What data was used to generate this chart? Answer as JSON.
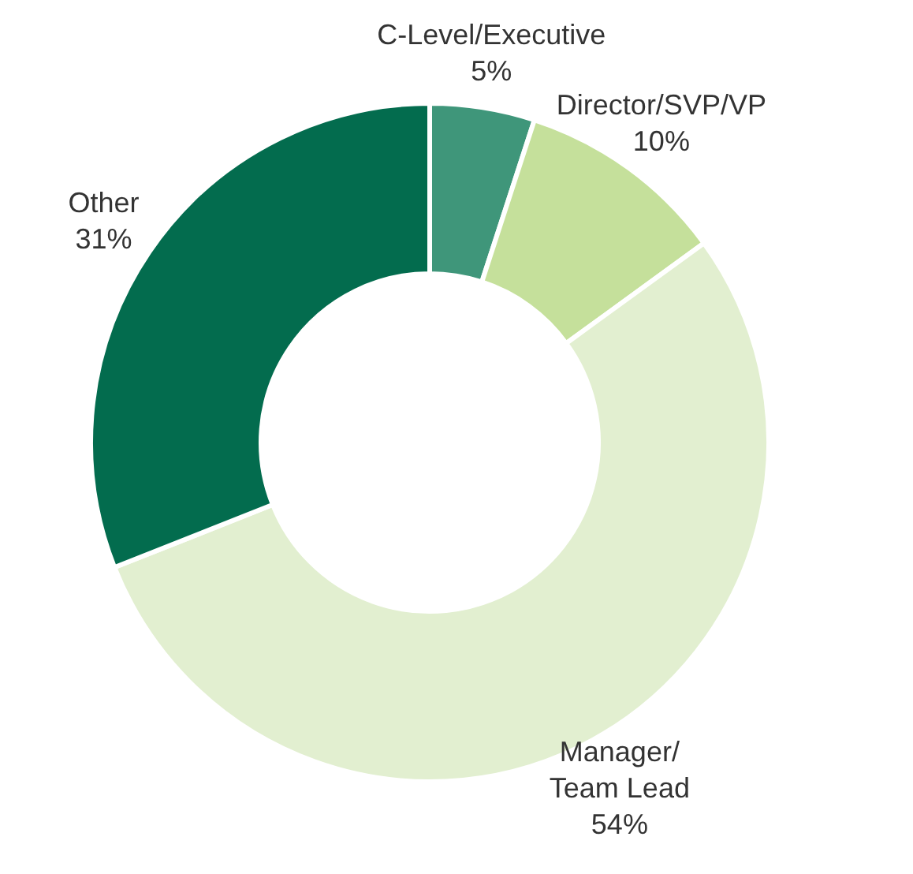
{
  "chart_data": {
    "type": "donut",
    "categories": [
      "C-Level/Executive",
      "Director/SVP/VP",
      "Manager/\nTeam Lead",
      "Other"
    ],
    "values": [
      5,
      10,
      54,
      31
    ],
    "colors": [
      "#3f967a",
      "#c5e09b",
      "#e2efd0",
      "#036c4e"
    ],
    "value_labels": [
      "5%",
      "10%",
      "54%",
      "31%"
    ]
  }
}
